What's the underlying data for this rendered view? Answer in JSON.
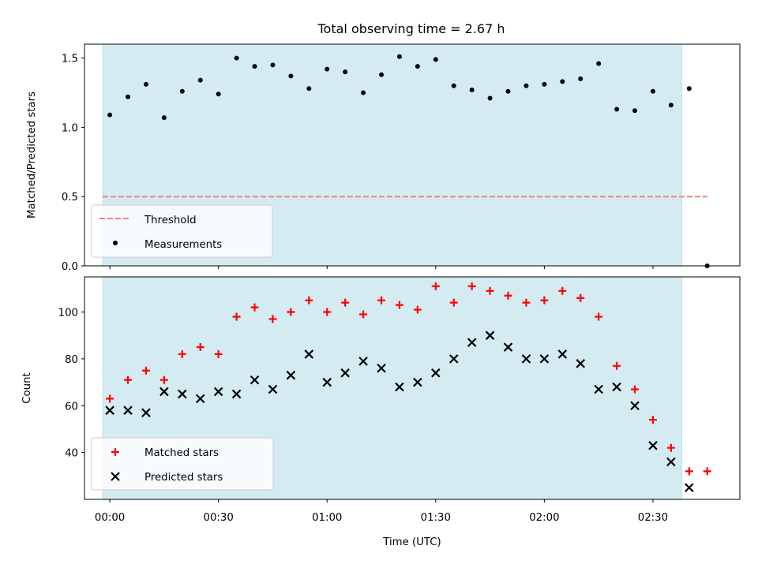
{
  "figure": {
    "title": "Total observing time = 2.67 h",
    "xlabel": "Time (UTC)",
    "x_ticks": [
      "00:00",
      "00:30",
      "01:00",
      "01:30",
      "02:00",
      "02:30"
    ]
  },
  "chart_data": [
    {
      "type": "scatter",
      "ylabel": "Matched/Predicted stars",
      "ylim": [
        0,
        1.6
      ],
      "yticks": [
        0.0,
        0.5,
        1.0,
        1.5
      ],
      "ytick_labels": [
        "0.0",
        "0.5",
        "1.0",
        "1.5"
      ],
      "shaded_span_minutes": [
        -2,
        158
      ],
      "shade_color": "#add8e6",
      "threshold": {
        "name": "Threshold",
        "value": 0.5,
        "x_range_minutes": [
          -2,
          165
        ],
        "color": "#f08080"
      },
      "series": [
        {
          "name": "Measurements",
          "marker": "dot",
          "color": "#000000",
          "x_minutes": [
            0,
            5,
            10,
            15,
            20,
            25,
            30,
            35,
            40,
            45,
            50,
            55,
            60,
            65,
            70,
            75,
            80,
            85,
            90,
            95,
            100,
            105,
            110,
            115,
            120,
            125,
            130,
            135,
            140,
            145,
            150,
            155,
            160,
            165
          ],
          "values": [
            1.09,
            1.22,
            1.31,
            1.07,
            1.26,
            1.34,
            1.24,
            1.5,
            1.44,
            1.45,
            1.37,
            1.28,
            1.42,
            1.4,
            1.25,
            1.38,
            1.51,
            1.44,
            1.49,
            1.3,
            1.27,
            1.21,
            1.26,
            1.3,
            1.31,
            1.33,
            1.35,
            1.46,
            1.13,
            1.12,
            1.26,
            1.16,
            1.28,
            0.0
          ]
        }
      ],
      "legend": {
        "location": "lower-left",
        "entries": [
          "Threshold",
          "Measurements"
        ]
      }
    },
    {
      "type": "scatter",
      "ylabel": "Count",
      "ylim": [
        20,
        115
      ],
      "yticks": [
        40,
        60,
        80,
        100
      ],
      "ytick_labels": [
        "40",
        "60",
        "80",
        "100"
      ],
      "shaded_span_minutes": [
        -2,
        158
      ],
      "shade_color": "#add8e6",
      "series": [
        {
          "name": "Matched stars",
          "marker": "plus",
          "color": "#ff0000",
          "x_minutes": [
            0,
            5,
            10,
            15,
            20,
            25,
            30,
            35,
            40,
            45,
            50,
            55,
            60,
            65,
            70,
            75,
            80,
            85,
            90,
            95,
            100,
            105,
            110,
            115,
            120,
            125,
            130,
            135,
            140,
            145,
            150,
            155,
            160,
            165
          ],
          "values": [
            63,
            71,
            75,
            71,
            82,
            85,
            82,
            98,
            102,
            97,
            100,
            105,
            100,
            104,
            99,
            105,
            103,
            101,
            111,
            104,
            111,
            109,
            107,
            104,
            105,
            109,
            106,
            98,
            77,
            67,
            54,
            42,
            32,
            32
          ]
        },
        {
          "name": "Predicted stars",
          "marker": "x",
          "color": "#000000",
          "x_minutes": [
            0,
            5,
            10,
            15,
            20,
            25,
            30,
            35,
            40,
            45,
            50,
            55,
            60,
            65,
            70,
            75,
            80,
            85,
            90,
            95,
            100,
            105,
            110,
            115,
            120,
            125,
            130,
            135,
            140,
            145,
            150,
            155,
            160
          ],
          "values": [
            58,
            58,
            57,
            66,
            65,
            63,
            66,
            65,
            71,
            67,
            73,
            82,
            70,
            74,
            79,
            76,
            68,
            70,
            74,
            80,
            87,
            90,
            85,
            80,
            80,
            82,
            78,
            67,
            68,
            60,
            43,
            36,
            25
          ]
        }
      ],
      "legend": {
        "location": "lower-left",
        "entries": [
          "Matched stars",
          "Predicted stars"
        ]
      }
    }
  ]
}
